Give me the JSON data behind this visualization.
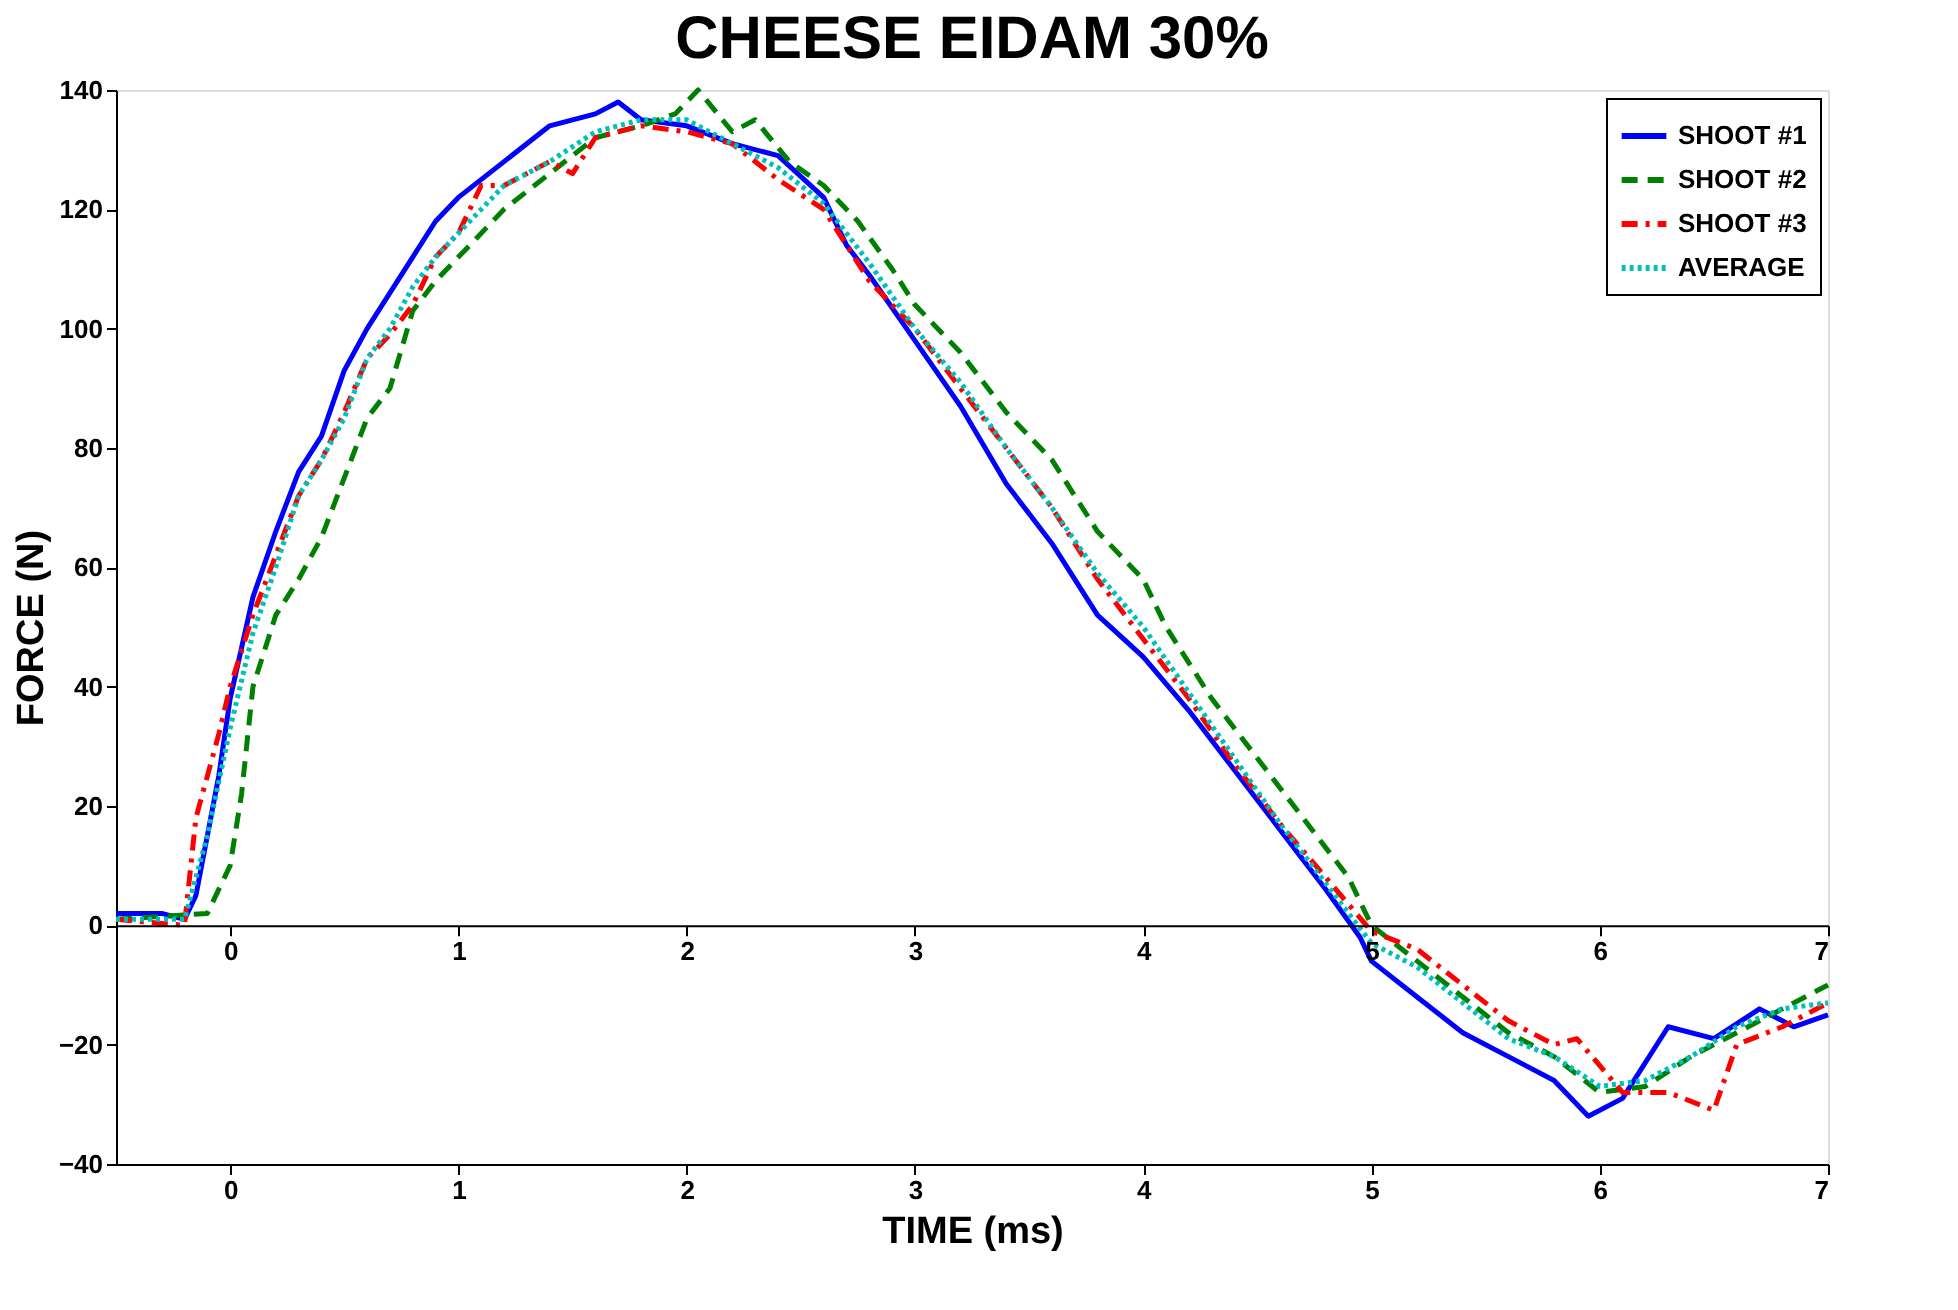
{
  "chart_data": {
    "type": "line",
    "title": "CHEESE EIDAM 30%",
    "xlabel": "TIME (ms)",
    "ylabel": "FORCE (N)",
    "xlim": [
      -0.5,
      7
    ],
    "xticks": [
      0,
      1,
      2,
      3,
      4,
      5,
      6,
      7
    ],
    "x2lim": [
      -0.5,
      7
    ],
    "x2ticks": [
      0,
      1,
      2,
      3,
      4,
      5,
      6,
      7
    ],
    "ylim": [
      -40,
      140
    ],
    "yticks": [
      -40,
      -20,
      0,
      20,
      40,
      60,
      80,
      100,
      120,
      140
    ],
    "grid": false,
    "legend": "top right",
    "marker": "none",
    "series": [
      {
        "name": "SHOOT #1",
        "color": "#0000ff",
        "line_style": "solid",
        "x": [
          -0.5,
          -0.3,
          -0.2,
          -0.15,
          -0.05,
          0,
          0.1,
          0.2,
          0.3,
          0.4,
          0.5,
          0.6,
          0.7,
          0.8,
          0.9,
          1.0,
          1.2,
          1.4,
          1.6,
          1.7,
          1.8,
          2.0,
          2.2,
          2.4,
          2.6,
          2.7,
          2.8,
          3.0,
          3.2,
          3.4,
          3.6,
          3.8,
          4.0,
          4.2,
          4.4,
          4.6,
          4.8,
          4.95,
          5.0,
          5.2,
          5.4,
          5.6,
          5.8,
          5.95,
          6.1,
          6.3,
          6.5,
          6.7,
          6.85,
          7
        ],
        "values": [
          2,
          2,
          1,
          5,
          25,
          38,
          55,
          66,
          76,
          82,
          93,
          100,
          106,
          112,
          118,
          122,
          128,
          134,
          136,
          138,
          135,
          134,
          131,
          129,
          122,
          114,
          109,
          98,
          87,
          74,
          64,
          52,
          45,
          36,
          26,
          16,
          6,
          -2,
          -6,
          -12,
          -18,
          -22,
          -26,
          -32,
          -29,
          -17,
          -19,
          -14,
          -17,
          -15
        ]
      },
      {
        "name": "SHOOT #2",
        "color": "#008000",
        "line_style": "dashed",
        "x": [
          -0.5,
          -0.1,
          0,
          0.05,
          0.1,
          0.2,
          0.3,
          0.4,
          0.5,
          0.6,
          0.7,
          0.8,
          0.9,
          1.0,
          1.2,
          1.4,
          1.6,
          1.8,
          1.95,
          2.05,
          2.2,
          2.3,
          2.45,
          2.6,
          2.75,
          2.9,
          3.0,
          3.2,
          3.4,
          3.6,
          3.8,
          4.0,
          4.1,
          4.3,
          4.5,
          4.7,
          4.9,
          5.0,
          5.2,
          5.4,
          5.6,
          5.8,
          6.0,
          6.2,
          6.4,
          6.6,
          6.8,
          7
        ],
        "values": [
          1,
          2,
          10,
          22,
          40,
          52,
          58,
          65,
          75,
          85,
          90,
          103,
          108,
          112,
          120,
          126,
          132,
          134,
          136,
          140,
          133,
          135,
          128,
          124,
          118,
          110,
          104,
          96,
          86,
          78,
          66,
          58,
          50,
          38,
          28,
          18,
          8,
          0,
          -6,
          -12,
          -18,
          -22,
          -28,
          -27,
          -22,
          -18,
          -14,
          -10
        ]
      },
      {
        "name": "SHOOT #3",
        "color": "#ff0000",
        "line_style": "dashdot",
        "x": [
          -0.5,
          -0.2,
          -0.15,
          -0.05,
          0,
          0.1,
          0.2,
          0.3,
          0.4,
          0.5,
          0.6,
          0.7,
          0.8,
          0.9,
          1.0,
          1.1,
          1.2,
          1.4,
          1.5,
          1.6,
          1.8,
          2.0,
          2.2,
          2.4,
          2.6,
          2.8,
          3.0,
          3.2,
          3.4,
          3.6,
          3.8,
          4.0,
          4.2,
          4.4,
          4.6,
          4.8,
          5.0,
          5.2,
          5.4,
          5.6,
          5.8,
          5.9,
          6.1,
          6.3,
          6.5,
          6.6,
          6.8,
          7
        ],
        "values": [
          1,
          0,
          18,
          32,
          40,
          52,
          62,
          72,
          78,
          86,
          95,
          99,
          104,
          112,
          116,
          124,
          124,
          128,
          126,
          132,
          134,
          133,
          131,
          125,
          120,
          108,
          100,
          90,
          80,
          70,
          58,
          48,
          38,
          27,
          17,
          8,
          -1,
          -4,
          -10,
          -16,
          -20,
          -19,
          -28,
          -28,
          -31,
          -20,
          -17,
          -13
        ]
      },
      {
        "name": "AVERAGE",
        "color": "#00bfbf",
        "line_style": "dotted",
        "x": [
          -0.5,
          -0.2,
          -0.1,
          0,
          0.1,
          0.2,
          0.3,
          0.4,
          0.5,
          0.6,
          0.7,
          0.8,
          0.9,
          1.0,
          1.2,
          1.4,
          1.6,
          1.8,
          2.0,
          2.2,
          2.4,
          2.6,
          2.8,
          3.0,
          3.2,
          3.4,
          3.6,
          3.8,
          4.0,
          4.2,
          4.4,
          4.6,
          4.8,
          5.0,
          5.2,
          5.4,
          5.6,
          5.8,
          6.0,
          6.2,
          6.4,
          6.6,
          6.8,
          7
        ],
        "values": [
          1,
          1,
          15,
          33,
          49,
          60,
          72,
          78,
          85,
          95,
          100,
          107,
          112,
          116,
          124,
          128,
          133,
          135,
          135,
          131,
          127,
          121,
          111,
          100,
          91,
          80,
          70,
          59,
          50,
          39,
          28,
          17,
          7,
          -3,
          -7,
          -13,
          -19,
          -22,
          -27,
          -26,
          -22,
          -17,
          -14,
          -13
        ]
      }
    ]
  }
}
